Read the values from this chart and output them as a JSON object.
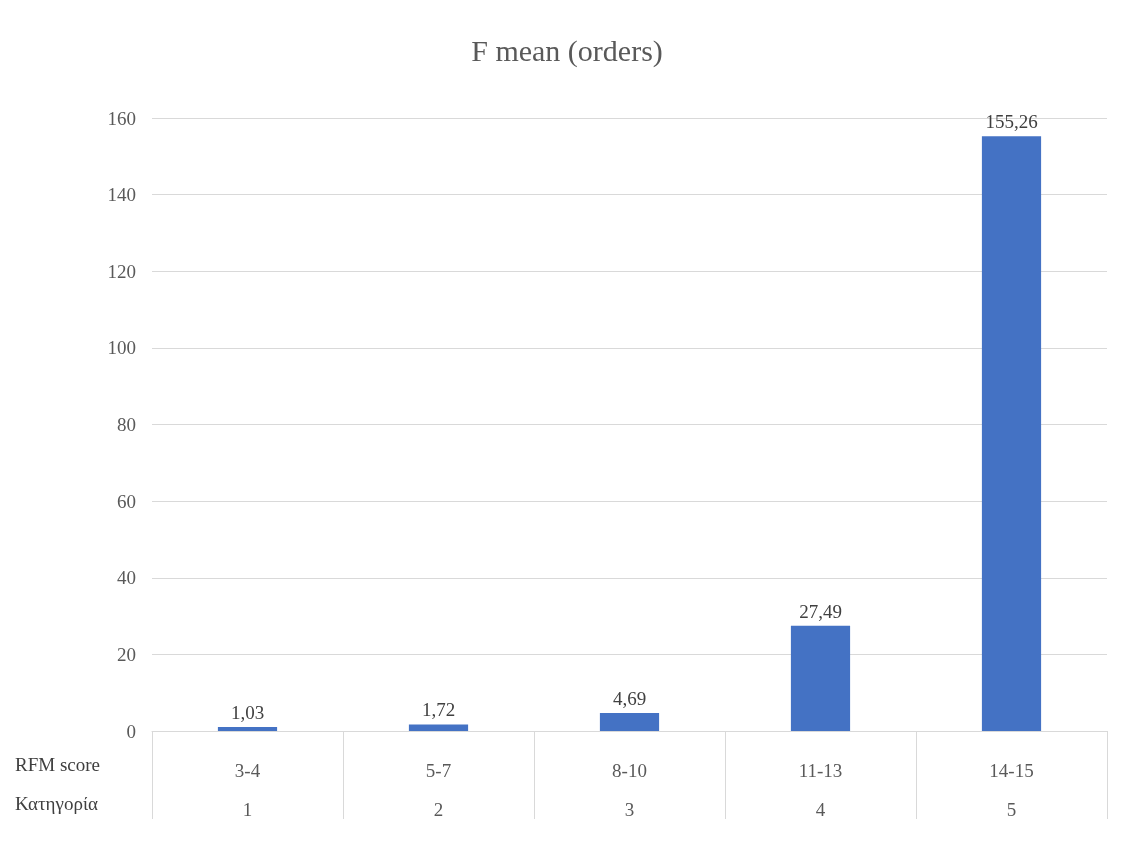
{
  "chart_data": {
    "type": "bar",
    "title": "F mean (orders)",
    "categories": [
      "3-4",
      "5-7",
      "8-10",
      "11-13",
      "14-15"
    ],
    "values": [
      1.03,
      1.72,
      4.69,
      27.49,
      155.26
    ],
    "value_labels": [
      "1,03",
      "1,72",
      "4,69",
      "27,49",
      "155,26"
    ],
    "color": "#4472c4",
    "ylim": [
      0,
      160
    ],
    "yticks": [
      0,
      20,
      40,
      60,
      80,
      100,
      120,
      140,
      160
    ],
    "grid": "y",
    "annotations": [
      "RFM score",
      "Κατηγορία",
      "1",
      "2",
      "3",
      "4",
      "5"
    ]
  }
}
